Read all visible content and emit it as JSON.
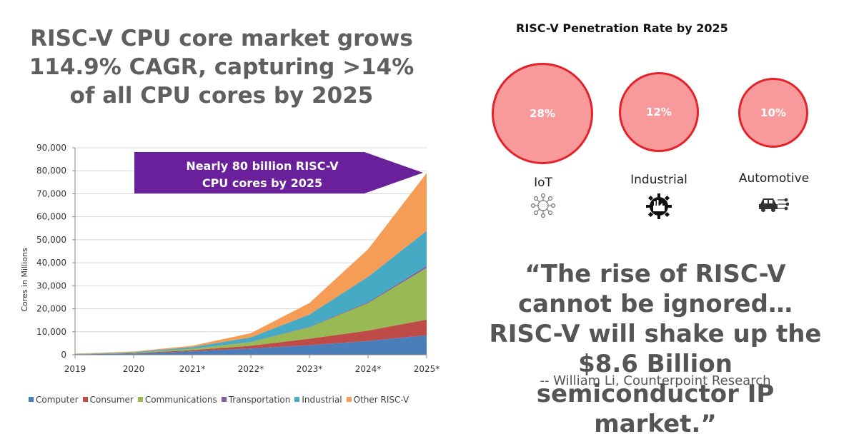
{
  "headline": "RISC-V CPU core market grows 114.9% CAGR, capturing >14% of all CPU cores by 2025",
  "chart_data": {
    "type": "area",
    "stacked": true,
    "ylabel": "Cores in Millions",
    "xlabel": "",
    "ylim": [
      0,
      90000
    ],
    "yticks": [
      0,
      10000,
      20000,
      30000,
      40000,
      50000,
      60000,
      70000,
      80000,
      90000
    ],
    "ytick_labels": [
      "0",
      "10,000",
      "20,000",
      "30,000",
      "40,000",
      "50,000",
      "60,000",
      "70,000",
      "80,000",
      "90,000"
    ],
    "categories": [
      "2019",
      "2020",
      "2021*",
      "2022*",
      "2023*",
      "2024*",
      "2025*"
    ],
    "series": [
      {
        "name": "Computer",
        "color": "#4a7ebb",
        "values": [
          200,
          500,
          1500,
          2700,
          4200,
          6000,
          8500
        ]
      },
      {
        "name": "Consumer",
        "color": "#be4b48",
        "values": [
          50,
          150,
          500,
          1200,
          2800,
          4500,
          6800
        ]
      },
      {
        "name": "Communications",
        "color": "#98b954",
        "values": [
          50,
          150,
          600,
          1600,
          5000,
          12000,
          22500
        ]
      },
      {
        "name": "Transportation",
        "color": "#7d60a0",
        "values": [
          5,
          10,
          30,
          80,
          200,
          400,
          800
        ]
      },
      {
        "name": "Industrial",
        "color": "#46aac5",
        "values": [
          100,
          300,
          700,
          2000,
          5300,
          11000,
          15300
        ]
      },
      {
        "name": "Other RISC-V",
        "color": "#f59d56",
        "values": [
          100,
          300,
          600,
          1800,
          5000,
          12000,
          25100
        ]
      }
    ],
    "annotation": {
      "line1": "Nearly 80 billion RISC-V",
      "line2": "CPU cores by 2025",
      "color": "#6a1f9b"
    },
    "legend_position": "bottom"
  },
  "penetration": {
    "title": "RISC-V Penetration Rate by 2025",
    "bubble_fill": "#f8999c",
    "bubble_stroke": "#e5222a",
    "items": [
      {
        "label": "IoT",
        "rate": "28%",
        "icon": "iot-network-icon"
      },
      {
        "label": "Industrial",
        "rate": "12%",
        "icon": "factory-gear-icon"
      },
      {
        "label": "Automotive",
        "rate": "10%",
        "icon": "connected-car-icon"
      }
    ]
  },
  "quote": {
    "text": "“The rise of RISC-V cannot be ignored… RISC-V will shake up the $8.6 Billion semiconductor IP market.”",
    "attribution": "-- William Li, Counterpoint Research"
  }
}
